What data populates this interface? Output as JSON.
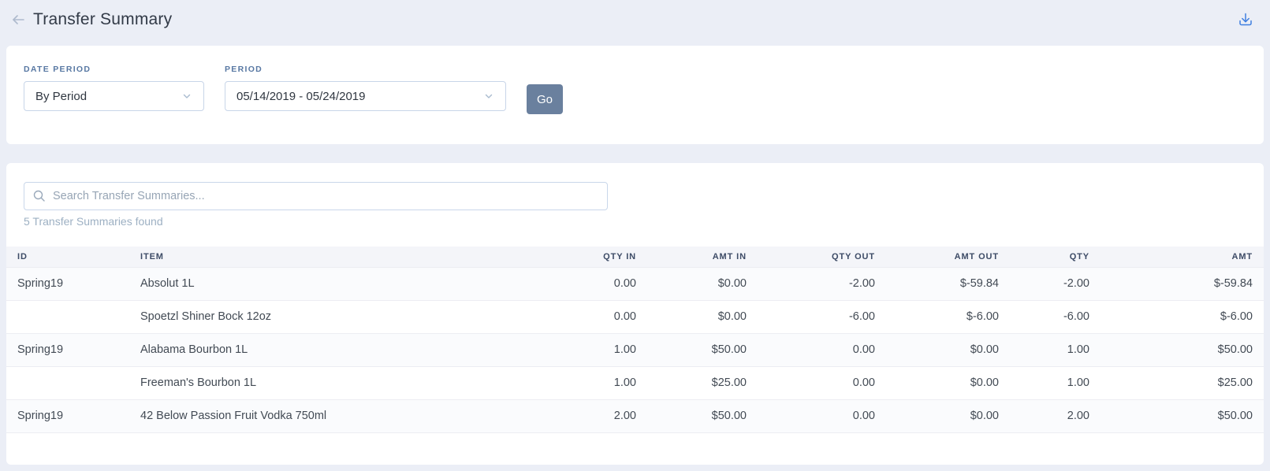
{
  "header": {
    "title": "Transfer Summary"
  },
  "filters": {
    "date_period": {
      "label": "DATE PERIOD",
      "value": "By Period"
    },
    "period": {
      "label": "PERIOD",
      "value": "05/14/2019 - 05/24/2019"
    },
    "go_label": "Go"
  },
  "search": {
    "placeholder": "Search Transfer Summaries...",
    "results_text": "5 Transfer Summaries found"
  },
  "table": {
    "columns": [
      "ID",
      "ITEM",
      "QTY IN",
      "AMT IN",
      "QTY OUT",
      "AMT OUT",
      "QTY",
      "AMT"
    ],
    "rows": [
      [
        "Spring19",
        "Absolut 1L",
        "0.00",
        "$0.00",
        "-2.00",
        "$-59.84",
        "-2.00",
        "$-59.84"
      ],
      [
        "",
        "Spoetzl Shiner Bock 12oz",
        "0.00",
        "$0.00",
        "-6.00",
        "$-6.00",
        "-6.00",
        "$-6.00"
      ],
      [
        "Spring19",
        "Alabama Bourbon 1L",
        "1.00",
        "$50.00",
        "0.00",
        "$0.00",
        "1.00",
        "$50.00"
      ],
      [
        "",
        "Freeman's Bourbon 1L",
        "1.00",
        "$25.00",
        "0.00",
        "$0.00",
        "1.00",
        "$25.00"
      ],
      [
        "Spring19",
        "42 Below Passion Fruit Vodka 750ml",
        "2.00",
        "$50.00",
        "0.00",
        "$0.00",
        "2.00",
        "$50.00"
      ]
    ]
  },
  "icons": {
    "back": "left-arrow",
    "download": "download-tray",
    "search": "magnifier",
    "dropdown": "chevron-down"
  },
  "colors": {
    "page_bg": "#ebeef6",
    "card_bg": "#ffffff",
    "accent_blue": "#3f7fe0",
    "button_bg": "#6a809e",
    "label_blue": "#5878a3",
    "header_text": "#3d4b66",
    "muted_text": "#9db0c3"
  }
}
